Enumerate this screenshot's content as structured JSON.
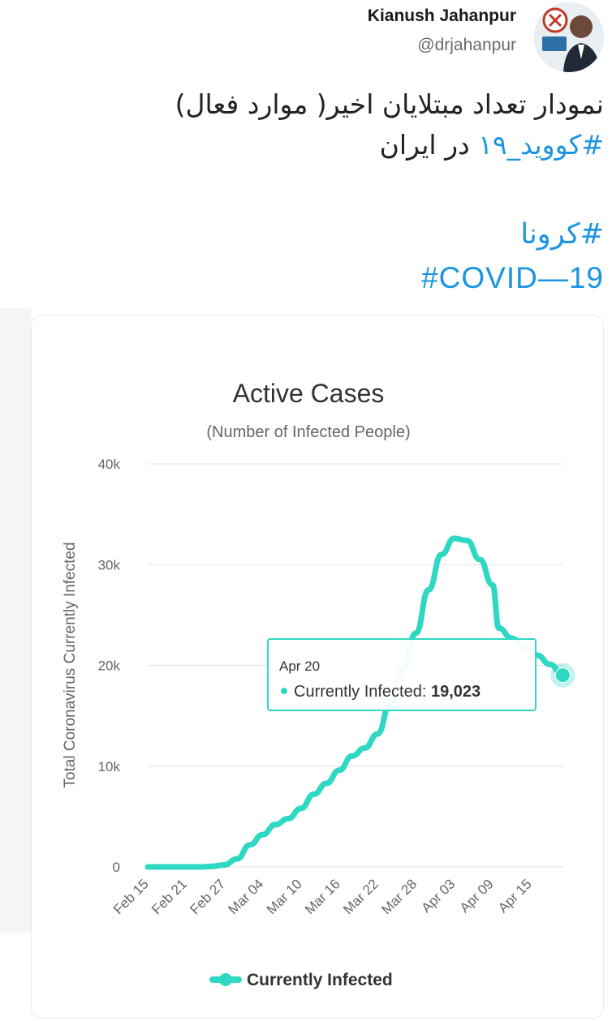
{
  "tweet": {
    "author_name": "Kianush Jahanpur",
    "author_handle": "@drjahanpur",
    "text_line1": "نمودار تعداد مبتلایان اخیر( موارد فعال)",
    "text_line2_hashtag": "#کووید_۱۹",
    "text_line2_rest": " در ایران",
    "tag1": "#کرونا",
    "tag2": "#COVID—19"
  },
  "colors": {
    "series": "#2ed8c2",
    "hashtag": "#1b95e0"
  },
  "chart_data": {
    "type": "line",
    "title": "Active Cases",
    "subtitle": "(Number of Infected People)",
    "ylabel": "Total Coronavirus Currently Infected",
    "ylim": [
      0,
      40000
    ],
    "yticks": [
      0,
      10000,
      20000,
      30000,
      40000
    ],
    "ytick_labels": [
      "0",
      "10k",
      "20k",
      "30k",
      "40k"
    ],
    "xtick_labels": [
      "Feb 15",
      "Feb 21",
      "Feb 27",
      "Mar 04",
      "Mar 10",
      "Mar 16",
      "Mar 22",
      "Mar 28",
      "Apr 03",
      "Apr 09",
      "Apr 15"
    ],
    "grid": true,
    "legend": "bottom",
    "series": [
      {
        "name": "Currently Infected",
        "x": [
          "Feb 15",
          "Feb 19",
          "Feb 23",
          "Feb 25",
          "Feb 27",
          "Feb 29",
          "Mar 02",
          "Mar 04",
          "Mar 06",
          "Mar 08",
          "Mar 10",
          "Mar 12",
          "Mar 14",
          "Mar 16",
          "Mar 18",
          "Mar 20",
          "Mar 22",
          "Mar 24",
          "Mar 26",
          "Mar 28",
          "Mar 30",
          "Apr 01",
          "Apr 03",
          "Apr 05",
          "Apr 07",
          "Apr 09",
          "Apr 10",
          "Apr 12",
          "Apr 14",
          "Apr 16",
          "Apr 18",
          "Apr 20"
        ],
        "values": [
          0,
          0,
          0,
          50,
          200,
          800,
          2200,
          3200,
          4200,
          4800,
          5800,
          7200,
          8300,
          9600,
          11000,
          11800,
          13200,
          16200,
          19800,
          23200,
          27500,
          31000,
          32600,
          32400,
          30500,
          28000,
          23700,
          22700,
          21800,
          21000,
          20100,
          19023
        ]
      }
    ],
    "tooltip": {
      "date": "Apr 20",
      "label": "Currently Infected: ",
      "value": "19,023"
    }
  }
}
